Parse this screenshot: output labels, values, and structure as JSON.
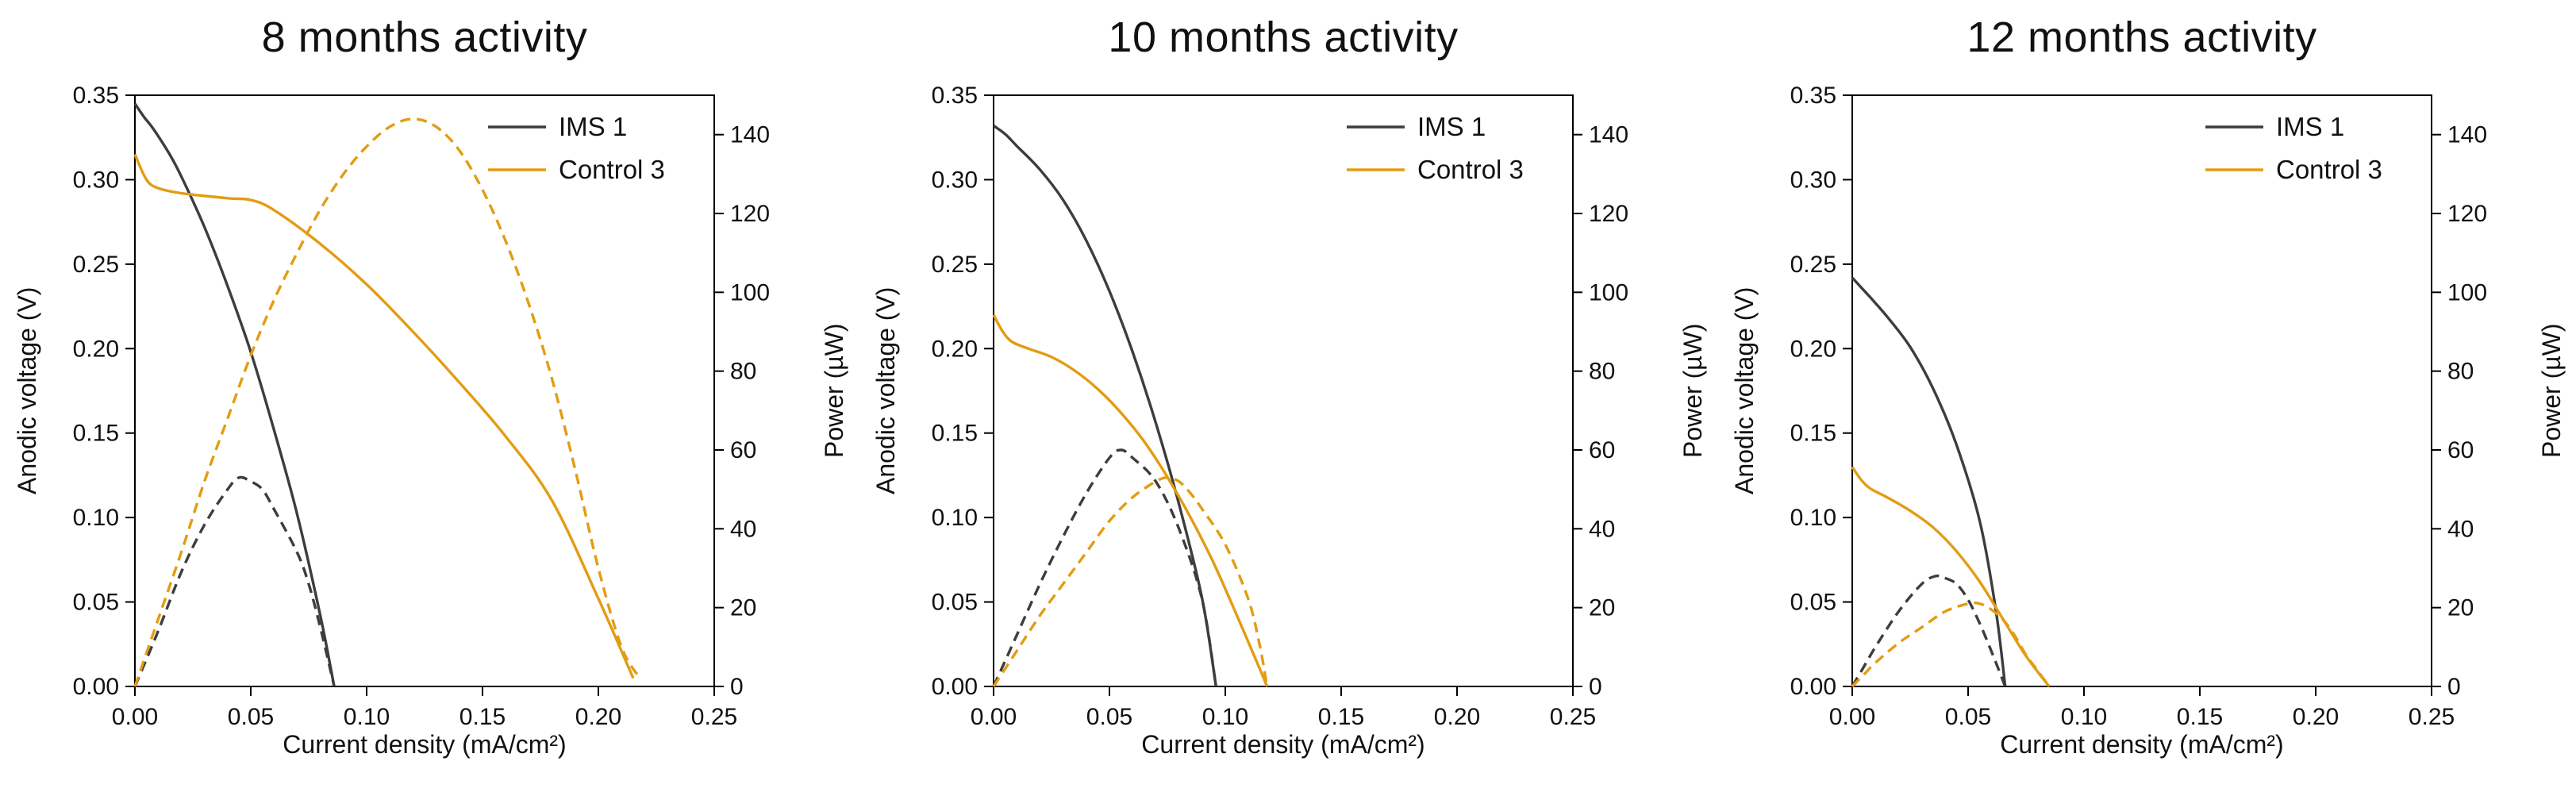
{
  "page": {
    "background": "#ffffff"
  },
  "colors": {
    "ims": "#3d3d3d",
    "control": "#e39c12",
    "axis": "#000000"
  },
  "chart_data": [
    {
      "type": "line",
      "title": "8 months activity",
      "xlabel": "Current density (mA/cm²)",
      "ylabel_left": "Anodic voltage (V)",
      "ylabel_right": "Power (µW)",
      "xlim": [
        0,
        0.25
      ],
      "xticks": [
        0,
        0.05,
        0.1,
        0.15,
        0.2,
        0.25
      ],
      "xtick_labels": [
        "0.00",
        "0.05",
        "0.10",
        "0.15",
        "0.20",
        "0.25"
      ],
      "ylim_left": [
        0,
        0.35
      ],
      "yticks_left": [
        0,
        0.05,
        0.1,
        0.15,
        0.2,
        0.25,
        0.3,
        0.35
      ],
      "ytick_labels_left": [
        "0.00",
        "0.05",
        "0.10",
        "0.15",
        "0.20",
        "0.25",
        "0.30",
        "0.35"
      ],
      "ylim_right": [
        0,
        150
      ],
      "yticks_right": [
        0,
        20,
        40,
        60,
        80,
        100,
        120,
        140
      ],
      "ytick_labels_right": [
        "0",
        "20",
        "40",
        "60",
        "80",
        "100",
        "120",
        "140"
      ],
      "legend": {
        "position": "top-right",
        "entries": [
          {
            "label": "IMS 1",
            "color": "#3d3d3d"
          },
          {
            "label": "Control 3",
            "color": "#e39c12"
          }
        ]
      },
      "series": [
        {
          "name": "IMS 1 voltage",
          "axis": "left",
          "dash": false,
          "color": "#3d3d3d",
          "points": [
            [
              0,
              0.345
            ],
            [
              0.004,
              0.337
            ],
            [
              0.008,
              0.33
            ],
            [
              0.015,
              0.315
            ],
            [
              0.02,
              0.302
            ],
            [
              0.03,
              0.272
            ],
            [
              0.04,
              0.237
            ],
            [
              0.05,
              0.198
            ],
            [
              0.06,
              0.152
            ],
            [
              0.07,
              0.102
            ],
            [
              0.08,
              0.042
            ],
            [
              0.086,
              0.0
            ]
          ]
        },
        {
          "name": "Control 3 voltage",
          "axis": "left",
          "dash": false,
          "color": "#e39c12",
          "points": [
            [
              0,
              0.315
            ],
            [
              0.005,
              0.3
            ],
            [
              0.01,
              0.295
            ],
            [
              0.02,
              0.292
            ],
            [
              0.04,
              0.289
            ],
            [
              0.05,
              0.288
            ],
            [
              0.06,
              0.282
            ],
            [
              0.08,
              0.262
            ],
            [
              0.1,
              0.238
            ],
            [
              0.12,
              0.21
            ],
            [
              0.14,
              0.18
            ],
            [
              0.16,
              0.148
            ],
            [
              0.18,
              0.11
            ],
            [
              0.2,
              0.052
            ],
            [
              0.215,
              0.005
            ]
          ]
        },
        {
          "name": "IMS 1 power",
          "axis": "right",
          "dash": true,
          "color": "#3d3d3d",
          "points": [
            [
              0,
              0
            ],
            [
              0.01,
              14
            ],
            [
              0.02,
              29
            ],
            [
              0.03,
              41
            ],
            [
              0.04,
              50
            ],
            [
              0.045,
              53
            ],
            [
              0.05,
              52
            ],
            [
              0.055,
              50
            ],
            [
              0.06,
              45
            ],
            [
              0.07,
              34
            ],
            [
              0.075,
              26
            ],
            [
              0.08,
              15
            ],
            [
              0.086,
              0
            ]
          ]
        },
        {
          "name": "Control 3 power",
          "axis": "right",
          "dash": true,
          "color": "#e39c12",
          "points": [
            [
              0,
              0
            ],
            [
              0.01,
              17
            ],
            [
              0.02,
              34
            ],
            [
              0.03,
              52
            ],
            [
              0.04,
              68
            ],
            [
              0.05,
              84
            ],
            [
              0.06,
              98
            ],
            [
              0.07,
              110
            ],
            [
              0.08,
              121
            ],
            [
              0.09,
              130
            ],
            [
              0.1,
              137
            ],
            [
              0.11,
              142
            ],
            [
              0.12,
              144
            ],
            [
              0.13,
              142
            ],
            [
              0.14,
              136
            ],
            [
              0.15,
              126
            ],
            [
              0.16,
              113
            ],
            [
              0.17,
              97
            ],
            [
              0.18,
              78
            ],
            [
              0.19,
              55
            ],
            [
              0.2,
              30
            ],
            [
              0.21,
              10
            ],
            [
              0.218,
              2
            ]
          ]
        }
      ]
    },
    {
      "type": "line",
      "title": "10 months activity",
      "xlabel": "Current density (mA/cm²)",
      "ylabel_left": "Anodic voltage (V)",
      "ylabel_right": "Power (µW)",
      "xlim": [
        0,
        0.25
      ],
      "xticks": [
        0,
        0.05,
        0.1,
        0.15,
        0.2,
        0.25
      ],
      "xtick_labels": [
        "0.00",
        "0.05",
        "0.10",
        "0.15",
        "0.20",
        "0.25"
      ],
      "ylim_left": [
        0,
        0.35
      ],
      "yticks_left": [
        0,
        0.05,
        0.1,
        0.15,
        0.2,
        0.25,
        0.3,
        0.35
      ],
      "ytick_labels_left": [
        "0.00",
        "0.05",
        "0.10",
        "0.15",
        "0.20",
        "0.25",
        "0.30",
        "0.35"
      ],
      "ylim_right": [
        0,
        150
      ],
      "yticks_right": [
        0,
        20,
        40,
        60,
        80,
        100,
        120,
        140
      ],
      "ytick_labels_right": [
        "0",
        "20",
        "40",
        "60",
        "80",
        "100",
        "120",
        "140"
      ],
      "legend": {
        "position": "top-right",
        "entries": [
          {
            "label": "IMS 1",
            "color": "#3d3d3d"
          },
          {
            "label": "Control 3",
            "color": "#e39c12"
          }
        ]
      },
      "series": [
        {
          "name": "IMS 1 voltage",
          "axis": "left",
          "dash": false,
          "color": "#3d3d3d",
          "points": [
            [
              0,
              0.332
            ],
            [
              0.005,
              0.327
            ],
            [
              0.01,
              0.32
            ],
            [
              0.02,
              0.306
            ],
            [
              0.03,
              0.288
            ],
            [
              0.04,
              0.264
            ],
            [
              0.05,
              0.234
            ],
            [
              0.06,
              0.198
            ],
            [
              0.07,
              0.156
            ],
            [
              0.08,
              0.108
            ],
            [
              0.09,
              0.052
            ],
            [
              0.096,
              0.0
            ]
          ]
        },
        {
          "name": "Control 3 voltage",
          "axis": "left",
          "dash": false,
          "color": "#e39c12",
          "points": [
            [
              0,
              0.22
            ],
            [
              0.004,
              0.21
            ],
            [
              0.008,
              0.204
            ],
            [
              0.015,
              0.2
            ],
            [
              0.025,
              0.195
            ],
            [
              0.035,
              0.187
            ],
            [
              0.045,
              0.176
            ],
            [
              0.055,
              0.162
            ],
            [
              0.065,
              0.145
            ],
            [
              0.075,
              0.124
            ],
            [
              0.085,
              0.1
            ],
            [
              0.095,
              0.073
            ],
            [
              0.105,
              0.042
            ],
            [
              0.115,
              0.01
            ],
            [
              0.118,
              0.0
            ]
          ]
        },
        {
          "name": "IMS 1 power",
          "axis": "right",
          "dash": true,
          "color": "#3d3d3d",
          "points": [
            [
              0,
              0
            ],
            [
              0.01,
              13
            ],
            [
              0.02,
              26
            ],
            [
              0.03,
              38
            ],
            [
              0.04,
              49
            ],
            [
              0.05,
              58
            ],
            [
              0.055,
              60
            ],
            [
              0.06,
              58
            ],
            [
              0.07,
              52
            ],
            [
              0.08,
              40
            ],
            [
              0.09,
              22
            ],
            [
              0.096,
              0
            ]
          ]
        },
        {
          "name": "Control 3 power",
          "axis": "right",
          "dash": true,
          "color": "#e39c12",
          "points": [
            [
              0,
              0
            ],
            [
              0.01,
              9
            ],
            [
              0.02,
              18
            ],
            [
              0.03,
              26
            ],
            [
              0.04,
              34
            ],
            [
              0.05,
              42
            ],
            [
              0.06,
              48
            ],
            [
              0.07,
              52
            ],
            [
              0.075,
              53
            ],
            [
              0.08,
              52
            ],
            [
              0.085,
              49
            ],
            [
              0.09,
              45
            ],
            [
              0.1,
              36
            ],
            [
              0.11,
              22
            ],
            [
              0.115,
              10
            ],
            [
              0.118,
              0
            ]
          ]
        }
      ]
    },
    {
      "type": "line",
      "title": "12 months activity",
      "xlabel": "Current density (mA/cm²)",
      "ylabel_left": "Anodic voltage (V)",
      "ylabel_right": "Power (µW)",
      "xlim": [
        0,
        0.25
      ],
      "xticks": [
        0,
        0.05,
        0.1,
        0.15,
        0.2,
        0.25
      ],
      "xtick_labels": [
        "0.00",
        "0.05",
        "0.10",
        "0.15",
        "0.20",
        "0.25"
      ],
      "ylim_left": [
        0,
        0.35
      ],
      "yticks_left": [
        0,
        0.05,
        0.1,
        0.15,
        0.2,
        0.25,
        0.3,
        0.35
      ],
      "ytick_labels_left": [
        "0.00",
        "0.05",
        "0.10",
        "0.15",
        "0.20",
        "0.25",
        "0.30",
        "0.35"
      ],
      "ylim_right": [
        0,
        150
      ],
      "yticks_right": [
        0,
        20,
        40,
        60,
        80,
        100,
        120,
        140
      ],
      "ytick_labels_right": [
        "0",
        "20",
        "40",
        "60",
        "80",
        "100",
        "120",
        "140"
      ],
      "legend": {
        "position": "top-right",
        "entries": [
          {
            "label": "IMS 1",
            "color": "#3d3d3d"
          },
          {
            "label": "Control 3",
            "color": "#e39c12"
          }
        ]
      },
      "series": [
        {
          "name": "IMS 1 voltage",
          "axis": "left",
          "dash": false,
          "color": "#3d3d3d",
          "points": [
            [
              0,
              0.242
            ],
            [
              0.004,
              0.236
            ],
            [
              0.008,
              0.23
            ],
            [
              0.015,
              0.219
            ],
            [
              0.025,
              0.201
            ],
            [
              0.035,
              0.176
            ],
            [
              0.045,
              0.143
            ],
            [
              0.055,
              0.098
            ],
            [
              0.062,
              0.045
            ],
            [
              0.066,
              0.0
            ]
          ]
        },
        {
          "name": "Control 3 voltage",
          "axis": "left",
          "dash": false,
          "color": "#e39c12",
          "points": [
            [
              0,
              0.13
            ],
            [
              0.004,
              0.122
            ],
            [
              0.008,
              0.117
            ],
            [
              0.015,
              0.112
            ],
            [
              0.025,
              0.104
            ],
            [
              0.035,
              0.094
            ],
            [
              0.045,
              0.08
            ],
            [
              0.055,
              0.062
            ],
            [
              0.065,
              0.04
            ],
            [
              0.075,
              0.018
            ],
            [
              0.085,
              0.0
            ]
          ]
        },
        {
          "name": "IMS 1 power",
          "axis": "right",
          "dash": true,
          "color": "#3d3d3d",
          "points": [
            [
              0,
              0
            ],
            [
              0.005,
              5
            ],
            [
              0.01,
              10
            ],
            [
              0.02,
              19
            ],
            [
              0.03,
              26
            ],
            [
              0.036,
              28
            ],
            [
              0.04,
              27.5
            ],
            [
              0.045,
              26
            ],
            [
              0.05,
              22
            ],
            [
              0.055,
              16
            ],
            [
              0.06,
              9
            ],
            [
              0.066,
              0
            ]
          ]
        },
        {
          "name": "Control 3 power",
          "axis": "right",
          "dash": true,
          "color": "#e39c12",
          "points": [
            [
              0,
              0
            ],
            [
              0.005,
              3
            ],
            [
              0.01,
              6
            ],
            [
              0.02,
              11
            ],
            [
              0.03,
              15
            ],
            [
              0.04,
              19
            ],
            [
              0.05,
              21
            ],
            [
              0.055,
              21
            ],
            [
              0.06,
              19.5
            ],
            [
              0.065,
              17
            ],
            [
              0.07,
              13
            ],
            [
              0.075,
              8
            ],
            [
              0.08,
              4
            ],
            [
              0.085,
              0
            ]
          ]
        }
      ]
    }
  ]
}
